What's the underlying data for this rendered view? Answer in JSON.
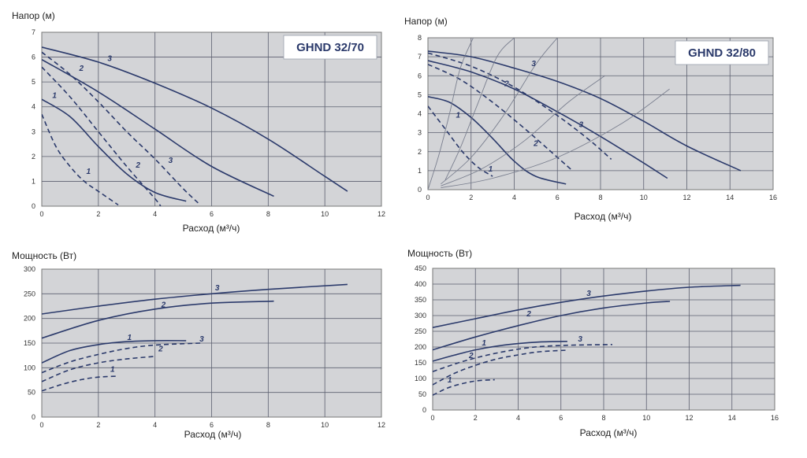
{
  "colors": {
    "curve": "#2b3a6b",
    "thin": "#7a7f8f",
    "plot_bg": "#d3d4d7",
    "grid": "#5c6070",
    "frame": "#777777"
  },
  "chart_data": [
    {
      "type": "line",
      "id": "head-32-70",
      "title": "GHND 32/70",
      "ylabel": "Напор (м)",
      "xlabel": "Расход (м³/ч)",
      "xlim": [
        0,
        12
      ],
      "ylim": [
        0,
        7
      ],
      "xticks": [
        "0",
        "2",
        "4",
        "6",
        "8",
        "10",
        "12"
      ],
      "yticks": [
        "0",
        "1",
        "2",
        "3",
        "4",
        "5",
        "6",
        "7"
      ],
      "series": [
        {
          "name": "3",
          "style": "solid",
          "label": "3",
          "label_at": [
            2.4,
            5.85
          ],
          "x": [
            0,
            2,
            4,
            6,
            8,
            10,
            10.8
          ],
          "y": [
            6.4,
            5.8,
            4.95,
            3.95,
            2.7,
            1.2,
            0.6
          ]
        },
        {
          "name": "2",
          "style": "solid",
          "label": "",
          "x": [
            0,
            2,
            4,
            6,
            8.2
          ],
          "y": [
            5.9,
            4.6,
            3.1,
            1.6,
            0.4
          ]
        },
        {
          "name": "1",
          "style": "solid",
          "label": "",
          "x": [
            0,
            1,
            2,
            3,
            4,
            5.1
          ],
          "y": [
            4.3,
            3.6,
            2.4,
            1.3,
            0.55,
            0.2
          ]
        },
        {
          "name": "3",
          "style": "dashed",
          "label": "3",
          "label_at": [
            4.55,
            1.75
          ],
          "x": [
            0,
            1,
            2,
            3,
            4,
            5,
            5.6
          ],
          "y": [
            6.2,
            5.3,
            4.2,
            3.0,
            1.9,
            0.7,
            0.05
          ]
        },
        {
          "name": "2",
          "style": "dashed",
          "label": "2",
          "label_at": [
            1.4,
            5.45
          ],
          "x": [
            0,
            1,
            2,
            3,
            4,
            4.2
          ],
          "y": [
            5.6,
            4.4,
            3.0,
            1.6,
            0.3,
            0.0
          ]
        },
        {
          "name": "1",
          "style": "dashed",
          "label": "1",
          "label_at": [
            0.45,
            4.35
          ],
          "x": [
            0,
            0.5,
            1,
            1.5,
            2,
            2.7
          ],
          "y": [
            3.7,
            2.4,
            1.6,
            1.0,
            0.6,
            0.05
          ]
        }
      ],
      "extra_labels": [
        {
          "text": "2",
          "at": [
            3.4,
            1.55
          ]
        },
        {
          "text": "1",
          "at": [
            1.65,
            1.3
          ]
        }
      ]
    },
    {
      "type": "line",
      "id": "head-32-80",
      "title": "GHND 32/80",
      "ylabel": "Напор (м)",
      "xlabel": "Расход (м³/ч)",
      "xlim": [
        0,
        16
      ],
      "ylim": [
        0,
        8
      ],
      "xticks": [
        "0",
        "2",
        "4",
        "6",
        "8",
        "10",
        "12",
        "14",
        "16"
      ],
      "yticks": [
        "0",
        "1",
        "2",
        "3",
        "4",
        "5",
        "6",
        "7",
        "8"
      ],
      "series": [
        {
          "name": "3",
          "style": "solid",
          "label": "3",
          "label_at": [
            4.9,
            6.5
          ],
          "x": [
            0,
            2,
            4,
            6,
            8,
            10,
            12,
            14.5
          ],
          "y": [
            7.3,
            7.0,
            6.4,
            5.7,
            4.8,
            3.6,
            2.3,
            1.0
          ]
        },
        {
          "name": "2",
          "style": "solid",
          "label": "2",
          "label_at": [
            3.65,
            5.45
          ],
          "x": [
            0,
            2,
            4,
            6,
            8,
            10,
            11.1
          ],
          "y": [
            6.8,
            6.2,
            5.3,
            4.1,
            2.8,
            1.4,
            0.6
          ]
        },
        {
          "name": "1",
          "style": "solid",
          "label": "1",
          "label_at": [
            1.4,
            3.8
          ],
          "x": [
            0,
            1,
            2,
            3,
            4,
            5,
            6.4
          ],
          "y": [
            4.9,
            4.6,
            3.8,
            2.7,
            1.5,
            0.7,
            0.3
          ]
        },
        {
          "name": "3",
          "style": "dashed",
          "label": "3",
          "label_at": [
            7.1,
            3.3
          ],
          "x": [
            0,
            2,
            4,
            6,
            7.5,
            8.5
          ],
          "y": [
            7.2,
            6.5,
            5.4,
            3.9,
            2.6,
            1.6
          ]
        },
        {
          "name": "2",
          "style": "dashed",
          "label": "2",
          "label_at": [
            5.0,
            2.3
          ],
          "x": [
            0,
            1.5,
            3,
            4.5,
            6,
            6.7
          ],
          "y": [
            6.6,
            5.8,
            4.6,
            3.2,
            1.7,
            1.0
          ]
        },
        {
          "name": "1",
          "style": "dashed",
          "label": "1",
          "label_at": [
            2.9,
            0.95
          ],
          "x": [
            0,
            0.8,
            1.6,
            2.3,
            3.0
          ],
          "y": [
            4.4,
            3.2,
            2.0,
            1.2,
            0.7
          ]
        },
        {
          "name": "sys-a",
          "style": "thin",
          "label": "",
          "x": [
            0.8,
            1.5,
            2.3,
            3.2,
            4.0
          ],
          "y": [
            0.5,
            2.2,
            4.5,
            7.0,
            8.0
          ]
        },
        {
          "name": "sys-b",
          "style": "thin",
          "label": "",
          "x": [
            0.6,
            2.0,
            3.5,
            5.0,
            6.0
          ],
          "y": [
            0.3,
            1.7,
            3.9,
            6.6,
            8.0
          ]
        },
        {
          "name": "sys-c",
          "style": "thin",
          "label": "",
          "x": [
            0.6,
            2.5,
            4.5,
            6.5,
            8.2
          ],
          "y": [
            0.2,
            1.1,
            2.6,
            4.6,
            6.0
          ]
        },
        {
          "name": "sys-d",
          "style": "thin",
          "label": "",
          "x": [
            0.6,
            3.0,
            6.0,
            9.0,
            11.2
          ],
          "y": [
            0.1,
            0.6,
            1.7,
            3.5,
            5.3
          ]
        },
        {
          "name": "sys-e",
          "style": "thin",
          "label": "",
          "x": [
            0.0,
            0.5,
            1.0,
            1.5,
            2.1
          ],
          "y": [
            0.0,
            1.8,
            4.0,
            6.4,
            8.0
          ]
        }
      ],
      "extra_labels": []
    },
    {
      "type": "line",
      "id": "power-32-70",
      "title": "",
      "ylabel": "Мощность (Вт)",
      "xlabel": "Расход (м³/ч)",
      "xlim": [
        0,
        12
      ],
      "ylim": [
        0,
        300
      ],
      "xticks": [
        "0",
        "2",
        "4",
        "6",
        "8",
        "10",
        "12"
      ],
      "yticks": [
        "0",
        "50",
        "100",
        "150",
        "200",
        "250",
        "300"
      ],
      "series": [
        {
          "name": "3",
          "style": "solid",
          "label": "3",
          "label_at": [
            6.2,
            257
          ],
          "x": [
            0,
            2,
            4,
            6,
            8,
            10.8
          ],
          "y": [
            209,
            225,
            239,
            250,
            259,
            269
          ]
        },
        {
          "name": "2",
          "style": "solid",
          "label": "2",
          "label_at": [
            4.3,
            223
          ],
          "x": [
            0,
            2,
            4,
            6,
            8.2
          ],
          "y": [
            160,
            196,
            219,
            231,
            235
          ]
        },
        {
          "name": "1",
          "style": "solid",
          "label": "1",
          "label_at": [
            3.1,
            156
          ],
          "x": [
            0,
            1,
            2,
            3,
            4,
            5.1
          ],
          "y": [
            110,
            135,
            147,
            153,
            155,
            155
          ]
        },
        {
          "name": "3",
          "style": "dashed",
          "label": "3",
          "label_at": [
            5.65,
            153
          ],
          "x": [
            0,
            1,
            2,
            3,
            4,
            5.6
          ],
          "y": [
            90,
            112,
            127,
            139,
            146,
            150
          ]
        },
        {
          "name": "2",
          "style": "dashed",
          "label": "2",
          "label_at": [
            4.2,
            133
          ],
          "x": [
            0,
            1,
            2,
            3,
            4
          ],
          "y": [
            72,
            96,
            110,
            118,
            123
          ]
        },
        {
          "name": "1",
          "style": "dashed",
          "label": "1",
          "label_at": [
            2.5,
            92
          ],
          "x": [
            0,
            0.7,
            1.4,
            2.0,
            2.7
          ],
          "y": [
            53,
            66,
            76,
            81,
            83
          ]
        }
      ],
      "extra_labels": []
    },
    {
      "type": "line",
      "id": "power-32-80",
      "title": "",
      "ylabel": "Мощность (Вт)",
      "xlabel": "Расход (м³/ч)",
      "xlim": [
        0,
        16
      ],
      "ylim": [
        0,
        450
      ],
      "xticks": [
        "0",
        "2",
        "4",
        "6",
        "8",
        "10",
        "12",
        "14",
        "16"
      ],
      "yticks": [
        "0",
        "50",
        "100",
        "150",
        "200",
        "250",
        "300",
        "350",
        "400",
        "450"
      ],
      "series": [
        {
          "name": "3",
          "style": "solid",
          "label": "3",
          "label_at": [
            7.3,
            363
          ],
          "x": [
            0,
            2,
            4,
            6,
            8,
            10,
            12,
            14.4
          ],
          "y": [
            262,
            290,
            318,
            342,
            362,
            378,
            390,
            396
          ]
        },
        {
          "name": "2",
          "style": "solid",
          "label": "2",
          "label_at": [
            4.5,
            298
          ],
          "x": [
            0,
            2,
            4,
            6,
            8,
            10,
            11.1
          ],
          "y": [
            191,
            232,
            268,
            300,
            324,
            340,
            345
          ]
        },
        {
          "name": "1",
          "style": "solid",
          "label": "1",
          "label_at": [
            2.4,
            205
          ],
          "x": [
            0,
            1,
            2,
            3,
            4,
            5,
            6.3
          ],
          "y": [
            155,
            174,
            191,
            203,
            211,
            216,
            218
          ]
        },
        {
          "name": "3",
          "style": "dashed",
          "label": "3",
          "label_at": [
            6.9,
            218
          ],
          "x": [
            0,
            1.5,
            3,
            4.5,
            6,
            8.4
          ],
          "y": [
            122,
            156,
            181,
            198,
            205,
            208
          ]
        },
        {
          "name": "2",
          "style": "dashed",
          "label": "2",
          "label_at": [
            1.8,
            165
          ],
          "x": [
            0,
            1,
            2,
            3,
            4,
            5,
            6.3
          ],
          "y": [
            80,
            116,
            142,
            162,
            175,
            185,
            190
          ]
        },
        {
          "name": "1",
          "style": "dashed",
          "label": "1",
          "label_at": [
            0.8,
            88
          ],
          "x": [
            0,
            0.7,
            1.4,
            2.1,
            2.9
          ],
          "y": [
            47,
            70,
            84,
            93,
            96
          ]
        }
      ],
      "extra_labels": []
    }
  ]
}
